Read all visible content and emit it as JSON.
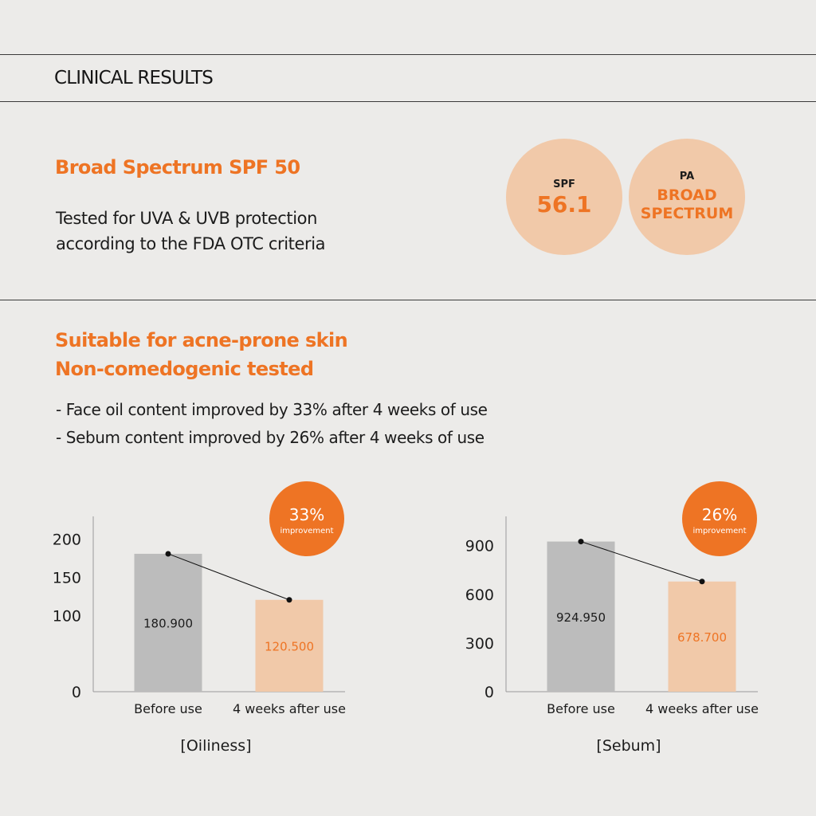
{
  "header": {
    "title": "CLINICAL RESULTS"
  },
  "spf_section": {
    "heading": "Broad Spectrum SPF 50",
    "description_lines": [
      "Tested for UVA & UVB protection",
      "according to the FDA OTC criteria"
    ],
    "badges": [
      {
        "label": "SPF",
        "value_lines": [
          "56.1"
        ]
      },
      {
        "label": "PA",
        "value_lines": [
          "BROAD",
          "SPECTRUM"
        ]
      }
    ]
  },
  "acne_section": {
    "heading_lines": [
      "Suitable for acne-prone skin",
      "Non-comedogenic tested"
    ],
    "bullets": [
      "- Face oil content improved by 33% after 4 weeks of use",
      "- Sebum content improved by 26% after 4 weeks of use"
    ]
  },
  "colors": {
    "accent": "#ee7424",
    "badge_fill": "#f1c9a9",
    "bar_before": "#bcbcbc",
    "bar_after": "#f1c9a9",
    "background": "#ecebe9"
  },
  "chart_data": [
    {
      "type": "bar",
      "title": "[Oiliness]",
      "categories": [
        "Before use",
        "4 weeks after use"
      ],
      "values": [
        180.9,
        120.5
      ],
      "value_labels": [
        "180.900",
        "120.500"
      ],
      "yticks": [
        0,
        100,
        150,
        200
      ],
      "ylim": [
        0,
        230
      ],
      "connector_line": true,
      "callout": {
        "value": "33%",
        "text": "improvement"
      }
    },
    {
      "type": "bar",
      "title": "[Sebum]",
      "categories": [
        "Before use",
        "4 weeks after use"
      ],
      "values": [
        924.95,
        678.7
      ],
      "value_labels": [
        "924.950",
        "678.700"
      ],
      "yticks": [
        0,
        300,
        600,
        900
      ],
      "ylim": [
        0,
        1080
      ],
      "connector_line": true,
      "callout": {
        "value": "26%",
        "text": "improvement"
      }
    }
  ]
}
